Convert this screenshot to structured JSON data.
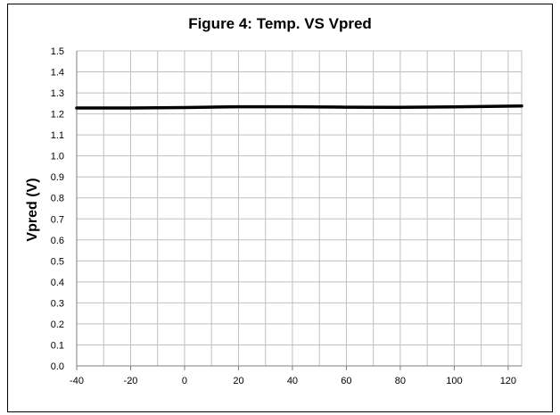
{
  "chart_data": {
    "type": "line",
    "title": "Figure 4: Temp. VS Vpred",
    "xlabel": "",
    "ylabel": "Vpred (V)",
    "xlim": [
      -40,
      125
    ],
    "ylim": [
      0.0,
      1.5
    ],
    "xticks": [
      -40,
      -20,
      0,
      20,
      40,
      60,
      80,
      100,
      120
    ],
    "yticks": [
      "0.0",
      "0.1",
      "0.2",
      "0.3",
      "0.4",
      "0.5",
      "0.6",
      "0.7",
      "0.8",
      "0.9",
      "1.0",
      "1.1",
      "1.2",
      "1.3",
      "1.4",
      "1.5"
    ],
    "grid": true,
    "legend": "none",
    "series": [
      {
        "x": [
          -40,
          -20,
          0,
          20,
          40,
          60,
          80,
          100,
          125
        ],
        "y": [
          1.228,
          1.228,
          1.23,
          1.234,
          1.234,
          1.232,
          1.231,
          1.233,
          1.238
        ],
        "color": "#000000"
      }
    ]
  }
}
